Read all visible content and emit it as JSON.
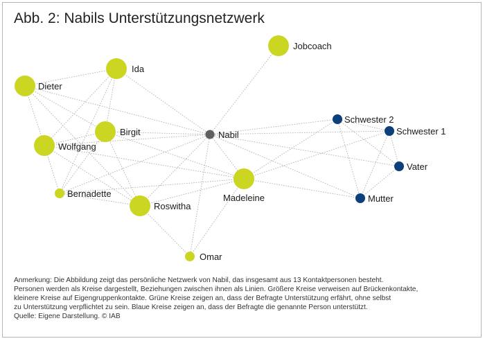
{
  "title": "Abb. 2: Nabils Unterstützungsnetzwerk",
  "colors": {
    "green": "#cbd623",
    "blue": "#0d3f7a",
    "center": "#5f5f5f",
    "edge": "#b0b0b0"
  },
  "nodes": [
    {
      "id": "jobcoach",
      "label": "Jobcoach",
      "group": "green",
      "size": "large"
    },
    {
      "id": "ida",
      "label": "Ida",
      "group": "green",
      "size": "large"
    },
    {
      "id": "dieter",
      "label": "Dieter",
      "group": "green",
      "size": "large"
    },
    {
      "id": "birgit",
      "label": "Birgit",
      "group": "green",
      "size": "large"
    },
    {
      "id": "wolfgang",
      "label": "Wolfgang",
      "group": "green",
      "size": "large"
    },
    {
      "id": "nabil",
      "label": "Nabil",
      "group": "center",
      "size": "small"
    },
    {
      "id": "bernadette",
      "label": "Bernadette",
      "group": "green",
      "size": "small"
    },
    {
      "id": "roswitha",
      "label": "Roswitha",
      "group": "green",
      "size": "large"
    },
    {
      "id": "madeleine",
      "label": "Madeleine",
      "group": "green",
      "size": "large"
    },
    {
      "id": "omar",
      "label": "Omar",
      "group": "green",
      "size": "small"
    },
    {
      "id": "schwester2",
      "label": "Schwester 2",
      "group": "blue",
      "size": "small"
    },
    {
      "id": "schwester1",
      "label": "Schwester 1",
      "group": "blue",
      "size": "small"
    },
    {
      "id": "vater",
      "label": "Vater",
      "group": "blue",
      "size": "small"
    },
    {
      "id": "mutter",
      "label": "Mutter",
      "group": "blue",
      "size": "small"
    }
  ],
  "edges": [
    [
      "nabil",
      "jobcoach"
    ],
    [
      "nabil",
      "ida"
    ],
    [
      "nabil",
      "dieter"
    ],
    [
      "nabil",
      "birgit"
    ],
    [
      "nabil",
      "wolfgang"
    ],
    [
      "nabil",
      "bernadette"
    ],
    [
      "nabil",
      "roswitha"
    ],
    [
      "nabil",
      "madeleine"
    ],
    [
      "nabil",
      "omar"
    ],
    [
      "nabil",
      "schwester2"
    ],
    [
      "nabil",
      "schwester1"
    ],
    [
      "nabil",
      "vater"
    ],
    [
      "nabil",
      "mutter"
    ],
    [
      "ida",
      "dieter"
    ],
    [
      "ida",
      "birgit"
    ],
    [
      "ida",
      "wolfgang"
    ],
    [
      "ida",
      "bernadette"
    ],
    [
      "dieter",
      "birgit"
    ],
    [
      "dieter",
      "wolfgang"
    ],
    [
      "dieter",
      "roswitha"
    ],
    [
      "birgit",
      "wolfgang"
    ],
    [
      "birgit",
      "roswitha"
    ],
    [
      "birgit",
      "bernadette"
    ],
    [
      "birgit",
      "madeleine"
    ],
    [
      "wolfgang",
      "bernadette"
    ],
    [
      "wolfgang",
      "roswitha"
    ],
    [
      "wolfgang",
      "madeleine"
    ],
    [
      "bernadette",
      "roswitha"
    ],
    [
      "bernadette",
      "madeleine"
    ],
    [
      "roswitha",
      "madeleine"
    ],
    [
      "roswitha",
      "omar"
    ],
    [
      "madeleine",
      "omar"
    ],
    [
      "madeleine",
      "schwester2"
    ],
    [
      "madeleine",
      "schwester1"
    ],
    [
      "madeleine",
      "mutter"
    ],
    [
      "schwester2",
      "schwester1"
    ],
    [
      "schwester2",
      "vater"
    ],
    [
      "schwester2",
      "mutter"
    ],
    [
      "schwester1",
      "vater"
    ],
    [
      "schwester1",
      "mutter"
    ],
    [
      "vater",
      "mutter"
    ]
  ],
  "note_lines": [
    "Anmerkung: Die Abbildung zeigt das persönliche Netzwerk von Nabil, das insgesamt aus 13 Kontaktpersonen besteht.",
    "Personen werden als Kreise dargestellt, Beziehungen zwischen ihnen als Linien. Größere Kreise verweisen auf Brückenkontakte,",
    "kleinere Kreise auf Eigengruppenkontakte. Grüne Kreise zeigen an, dass der Befragte Unterstützung erfährt, ohne selbst",
    "zu Unterstützung verpflichtet zu sein. Blaue Kreise zeigen an, dass der Befragte die genannte Person unterstützt."
  ],
  "source": "Quelle: Eigene Darstellung. © IAB"
}
